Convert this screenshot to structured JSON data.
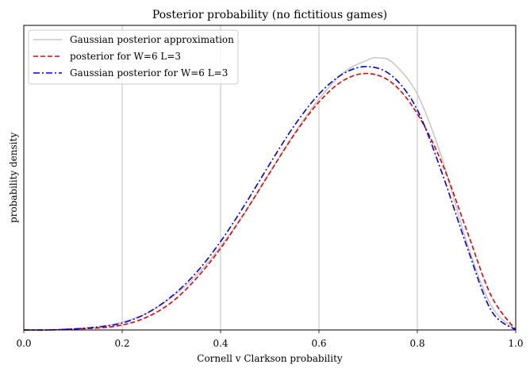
{
  "chart_data": {
    "type": "line",
    "title": "Posterior probability (no fictitious games)",
    "xlabel": "Cornell v Clarkson probability",
    "ylabel": "probability density",
    "xlim": [
      0.0,
      1.0
    ],
    "ylim": [
      0.0,
      3.1
    ],
    "x_ticks": [
      "0.0",
      "0.2",
      "0.4",
      "0.6",
      "0.8",
      "1.0"
    ],
    "x_tick_values": [
      0.0,
      0.2,
      0.4,
      0.6,
      0.8,
      1.0
    ],
    "grid": "x-only",
    "legend_position": "top-left",
    "series": [
      {
        "name": "Gaussian posterior approximation",
        "color": "#c8c8c8",
        "style": "solid",
        "x": [
          0.0,
          0.05,
          0.1,
          0.15,
          0.2,
          0.25,
          0.3,
          0.35,
          0.4,
          0.45,
          0.5,
          0.55,
          0.6,
          0.65,
          0.7,
          0.72,
          0.75,
          0.8,
          0.85,
          0.9,
          0.95,
          1.0
        ],
        "y": [
          0.0,
          0.0,
          0.01,
          0.03,
          0.08,
          0.17,
          0.33,
          0.55,
          0.85,
          1.2,
          1.6,
          2.0,
          2.35,
          2.62,
          2.75,
          2.77,
          2.72,
          2.4,
          1.75,
          0.9,
          0.25,
          0.0
        ]
      },
      {
        "name": "posterior for W=6 L=3",
        "color": "#e60000",
        "style": "dashed",
        "x": [
          0.0,
          0.05,
          0.1,
          0.15,
          0.2,
          0.25,
          0.3,
          0.35,
          0.4,
          0.45,
          0.5,
          0.55,
          0.6,
          0.65,
          0.7,
          0.75,
          0.8,
          0.85,
          0.9,
          0.95,
          1.0
        ],
        "y": [
          0.0,
          0.0,
          0.01,
          0.02,
          0.05,
          0.13,
          0.28,
          0.52,
          0.83,
          1.2,
          1.6,
          1.99,
          2.32,
          2.54,
          2.61,
          2.51,
          2.2,
          1.7,
          1.02,
          0.35,
          0.0
        ]
      },
      {
        "name": "Gaussian posterior for W=6 L=3",
        "color": "#0000e6",
        "style": "dashdot",
        "x": [
          0.0,
          0.05,
          0.1,
          0.15,
          0.2,
          0.25,
          0.3,
          0.35,
          0.4,
          0.45,
          0.5,
          0.55,
          0.6,
          0.65,
          0.7,
          0.75,
          0.8,
          0.85,
          0.9,
          0.95,
          1.0
        ],
        "y": [
          0.0,
          0.0,
          0.01,
          0.03,
          0.07,
          0.17,
          0.34,
          0.58,
          0.9,
          1.28,
          1.69,
          2.08,
          2.4,
          2.61,
          2.68,
          2.58,
          2.24,
          1.6,
          0.86,
          0.2,
          0.0
        ]
      }
    ]
  }
}
